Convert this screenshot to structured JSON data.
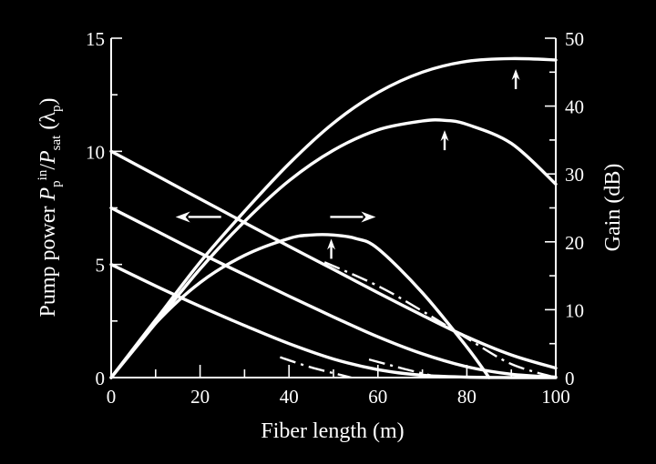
{
  "chart_data": {
    "type": "line",
    "title": "",
    "xlabel": "Fiber length (m)",
    "ylabel_left": {
      "main": "Pump power ",
      "p1": "P",
      "p1_sub": "p",
      "p1_sup": "in",
      "slash": "/",
      "p2": "P",
      "p2_sub": "sat",
      "tail": " (λ",
      "tail_sub": "p",
      "tail_end": ")"
    },
    "ylabel_right": "Gain (dB)",
    "xlim": [
      0,
      100
    ],
    "ylim_left": [
      0,
      15
    ],
    "ylim_right": [
      0,
      50
    ],
    "x_ticks": [
      "0",
      "20",
      "40",
      "60",
      "80",
      "100"
    ],
    "x_minor_ticks": [
      10,
      30,
      50,
      70,
      90
    ],
    "y_left_ticks": [
      "0",
      "5",
      "10",
      "15"
    ],
    "y_right_ticks": [
      "0",
      "10",
      "20",
      "30",
      "40",
      "50"
    ],
    "grid": false,
    "pump_series": [
      {
        "axis": "left",
        "x": [
          0,
          10,
          20,
          30,
          40,
          50,
          60,
          70,
          80,
          90,
          100
        ],
        "values": [
          10.0,
          8.95,
          7.9,
          6.85,
          5.8,
          4.78,
          3.75,
          2.75,
          1.8,
          1.0,
          0.42
        ]
      },
      {
        "axis": "left",
        "x": [
          0,
          10,
          20,
          30,
          40,
          50,
          60,
          70,
          80,
          90,
          100
        ],
        "values": [
          7.5,
          6.5,
          5.5,
          4.55,
          3.6,
          2.68,
          1.8,
          1.05,
          0.48,
          0.15,
          0.02
        ]
      },
      {
        "axis": "left",
        "x": [
          0,
          10,
          20,
          30,
          40,
          50,
          60,
          70,
          80,
          90,
          100
        ],
        "values": [
          5.0,
          4.05,
          3.15,
          2.3,
          1.5,
          0.82,
          0.35,
          0.1,
          0.02,
          0.0,
          0.0
        ]
      }
    ],
    "gain_series": [
      {
        "axis": "right",
        "x": [
          0,
          10,
          20,
          30,
          40,
          50,
          60,
          70,
          80,
          90,
          100
        ],
        "values": [
          0,
          8.5,
          17.0,
          24.5,
          31.5,
          37.5,
          42.0,
          45.0,
          46.6,
          47.0,
          46.8
        ]
      },
      {
        "axis": "right",
        "x": [
          0,
          10,
          20,
          30,
          40,
          50,
          60,
          70,
          75,
          80,
          90,
          100
        ],
        "values": [
          0,
          8.0,
          16.0,
          23.0,
          29.0,
          33.5,
          36.5,
          37.8,
          37.9,
          37.3,
          34.5,
          28.5
        ]
      },
      {
        "axis": "right",
        "x": [
          0,
          10,
          20,
          30,
          40,
          45,
          50,
          55,
          60,
          70,
          80,
          85
        ],
        "values": [
          0,
          8.0,
          14.0,
          18.0,
          20.5,
          21.0,
          21.0,
          20.5,
          19.0,
          12.5,
          4.5,
          0
        ]
      }
    ],
    "dashed_series": [
      {
        "axis": "right",
        "x": [
          48,
          60,
          70,
          80,
          90,
          100
        ],
        "values": [
          17,
          13.5,
          9.8,
          5.8,
          2.0,
          0
        ]
      },
      {
        "axis": "left",
        "x": [
          58,
          66,
          74
        ],
        "values": [
          0.8,
          0.38,
          0.0
        ]
      },
      {
        "axis": "left",
        "x": [
          38,
          45,
          54
        ],
        "values": [
          0.9,
          0.45,
          0.0
        ]
      }
    ],
    "annotations": [
      {
        "kind": "arrow-left",
        "x": 19,
        "y_left": 7.1
      },
      {
        "kind": "arrow-right",
        "x": 55,
        "y_left": 7.1
      },
      {
        "kind": "arrow-up",
        "x": 49.5,
        "y_right": 17.5
      },
      {
        "kind": "arrow-up",
        "x": 75,
        "y_right": 33.5
      },
      {
        "kind": "arrow-up",
        "x": 91,
        "y_right": 42.5
      }
    ]
  }
}
